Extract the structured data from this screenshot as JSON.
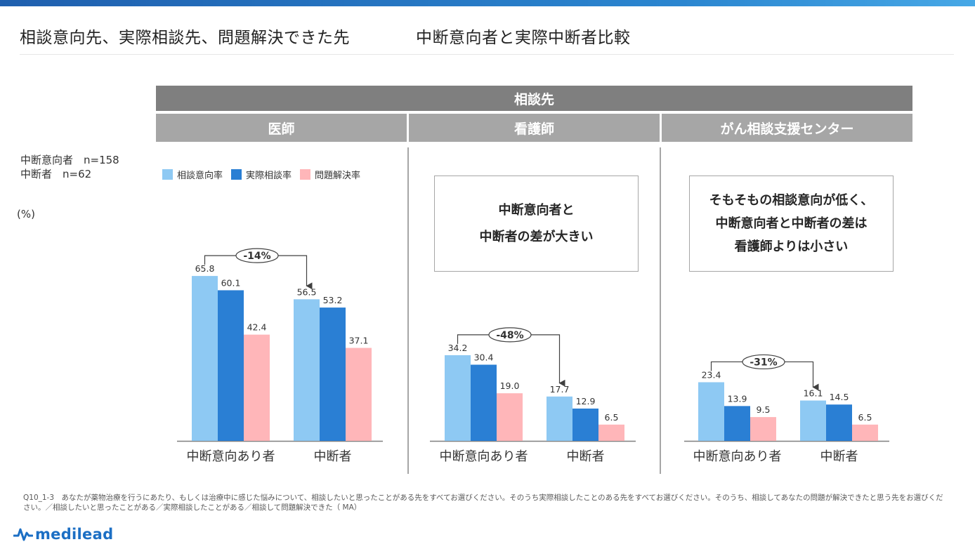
{
  "header": {
    "title_left": "相談意向先、実際相談先、問題解決できた先",
    "title_right": "中断意向者と実際中断者比較"
  },
  "table_header": {
    "main": "相談先",
    "groups": [
      "医師",
      "看護師",
      "がん相談支援センター"
    ]
  },
  "sample": {
    "line1": "中断意向者　n=158",
    "line2": "中断者　n=62"
  },
  "unit": "(%)",
  "legend": {
    "items": [
      {
        "label": "相談意向率",
        "color": "#8ec9f3"
      },
      {
        "label": "実際相談率",
        "color": "#2a7fd4"
      },
      {
        "label": "問題解決率",
        "color": "#ffb6b9"
      }
    ]
  },
  "callouts": {
    "nurse": [
      "中断意向者と",
      "中断者の差が大きい"
    ],
    "center": [
      "そもそもの相談意向が低く、",
      "中断意向者と中断者の差は",
      "看護師よりは小さい"
    ]
  },
  "chart_data": [
    {
      "type": "bar",
      "title": "医師",
      "categories": [
        "中断意向あり者",
        "中断者"
      ],
      "series": [
        {
          "name": "相談意向率",
          "values": [
            65.8,
            56.5
          ]
        },
        {
          "name": "実際相談率",
          "values": [
            60.1,
            53.2
          ]
        },
        {
          "name": "問題解決率",
          "values": [
            42.4,
            37.1
          ]
        }
      ],
      "annotation": "-14%"
    },
    {
      "type": "bar",
      "title": "看護師",
      "categories": [
        "中断意向あり者",
        "中断者"
      ],
      "series": [
        {
          "name": "相談意向率",
          "values": [
            34.2,
            17.7
          ]
        },
        {
          "name": "実際相談率",
          "values": [
            30.4,
            12.9
          ]
        },
        {
          "name": "問題解決率",
          "values": [
            19.0,
            6.5
          ]
        }
      ],
      "annotation": "-48%"
    },
    {
      "type": "bar",
      "title": "がん相談支援センター",
      "categories": [
        "中断意向あり者",
        "中断者"
      ],
      "series": [
        {
          "name": "相談意向率",
          "values": [
            23.4,
            16.1
          ]
        },
        {
          "name": "実際相談率",
          "values": [
            13.9,
            14.5
          ]
        },
        {
          "name": "問題解決率",
          "values": [
            9.5,
            6.5
          ]
        }
      ],
      "annotation": "-31%"
    }
  ],
  "footnote": "Q10_1-3　あなたが薬物治療を行うにあたり、もしくは治療中に感じた悩みについて、相談したいと思ったことがある先をすべてお選びください。そのうち実際相談したことのある先をすべてお選びください。そのうち、相談してあなたの問題が解決できたと思う先をお選びください。／相談したいと思ったことがある／実際相談したことがある／相談して問題解決できた（ MA）",
  "logo": {
    "text": "medilead"
  }
}
